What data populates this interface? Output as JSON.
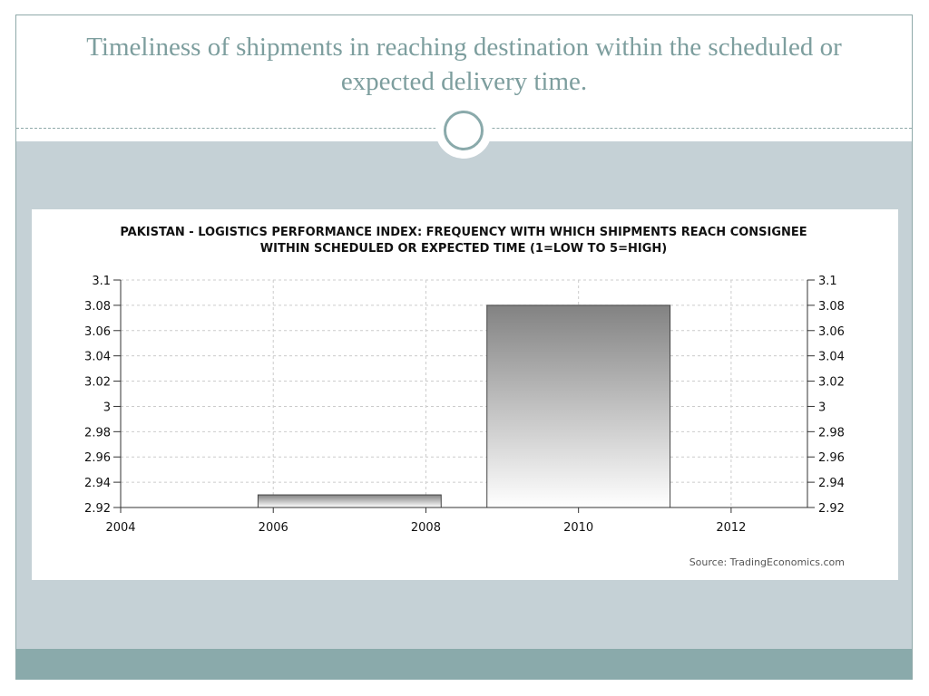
{
  "slide": {
    "title": "Timeliness of shipments in reaching destination within the scheduled or expected delivery time."
  },
  "chart_data": {
    "type": "bar",
    "title_lines": [
      "PAKISTAN - LOGISTICS PERFORMANCE INDEX: FREQUENCY WITH WHICH SHIPMENTS REACH CONSIGNEE",
      "WITHIN SCHEDULED OR EXPECTED TIME (1=LOW TO 5=HIGH)"
    ],
    "x_ticks": [
      "2004",
      "2006",
      "2008",
      "2010",
      "2012"
    ],
    "xlim": [
      2004,
      2013
    ],
    "y_ticks": [
      "2.92",
      "2.94",
      "2.96",
      "2.98",
      "3",
      "3.02",
      "3.04",
      "3.06",
      "3.08",
      "3.1"
    ],
    "ylim": [
      2.92,
      3.1
    ],
    "bars": [
      {
        "x_start": 2005.8,
        "x_end": 2008.2,
        "value": 2.93
      },
      {
        "x_start": 2008.8,
        "x_end": 2011.2,
        "value": 3.08
      }
    ],
    "grid": true,
    "source": "Source: TradingEconomics.com",
    "colors": {
      "bar_dark": "#828282",
      "bar_light": "#ffffff",
      "grid": "#cccccc",
      "axis": "#333333"
    }
  }
}
